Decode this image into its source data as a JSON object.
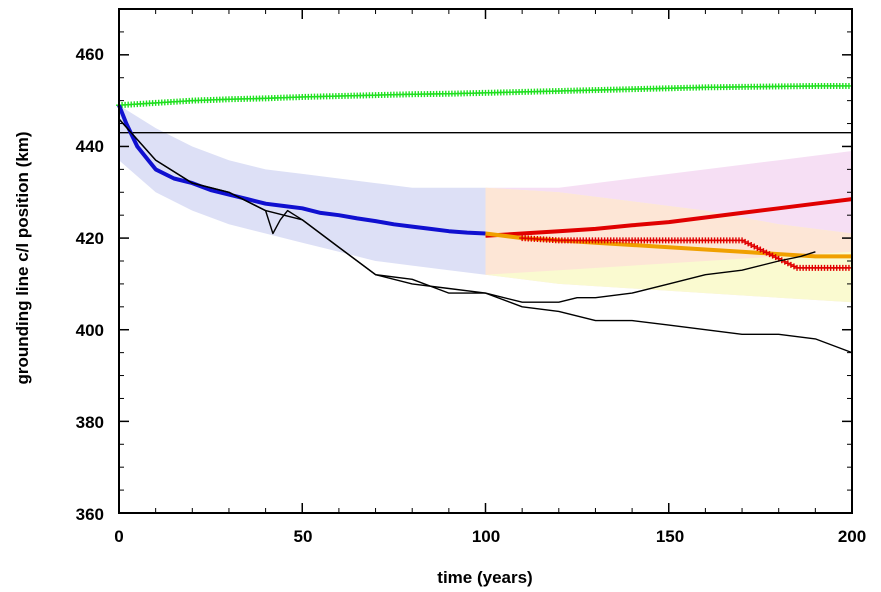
{
  "chart_data": {
    "type": "line",
    "xlabel": "time (years)",
    "ylabel": "grounding line c/l position (km)",
    "xlim": [
      0,
      200
    ],
    "ylim": [
      360,
      470
    ],
    "xticks": [
      0,
      50,
      100,
      150,
      200
    ],
    "yticks": [
      360,
      380,
      400,
      420,
      440,
      460
    ],
    "grid": false,
    "colors": {
      "blue": "#1010d0",
      "red": "#e00000",
      "orange": "#f0a000",
      "green": "#20e020",
      "black": "#000000",
      "blue_band": "#dde0f6",
      "orange_band": "#fde6d6",
      "yellow_band": "#fafad0",
      "pink_band": "#f6dff4"
    },
    "series": [
      {
        "color_key": "black",
        "style": "line",
        "x": [
          0,
          200
        ],
        "y": [
          443,
          443
        ]
      },
      {
        "color_key": "green",
        "style": "plus",
        "x": [
          0,
          10,
          20,
          30,
          40,
          50,
          60,
          70,
          80,
          90,
          100,
          110,
          120,
          130,
          140,
          150,
          160,
          170,
          180,
          190,
          200
        ],
        "y": [
          449,
          449.5,
          450,
          450.3,
          450.5,
          450.8,
          451,
          451.2,
          451.4,
          451.5,
          451.7,
          451.9,
          452.1,
          452.3,
          452.5,
          452.7,
          452.9,
          453,
          453.1,
          453.2,
          453.2
        ]
      },
      {
        "color_key": "blue",
        "style": "line",
        "x": [
          0,
          2,
          5,
          8,
          10,
          15,
          20,
          25,
          30,
          35,
          40,
          45,
          50,
          55,
          60,
          65,
          70,
          75,
          80,
          85,
          90,
          95,
          100
        ],
        "y": [
          449,
          445,
          440,
          437,
          435,
          433,
          432,
          430.5,
          429.5,
          428.5,
          427.5,
          427,
          426.5,
          425.5,
          425,
          424.3,
          423.7,
          423,
          422.5,
          422,
          421.5,
          421.2,
          421
        ]
      },
      {
        "color_key": "red",
        "style": "line",
        "x": [
          100,
          110,
          120,
          130,
          140,
          150,
          160,
          170,
          180,
          190,
          200
        ],
        "y": [
          420.5,
          421,
          421.5,
          422,
          422.8,
          423.5,
          424.5,
          425.5,
          426.5,
          427.5,
          428.5
        ]
      },
      {
        "color_key": "orange",
        "style": "line",
        "x": [
          100,
          110,
          120,
          130,
          140,
          150,
          160,
          170,
          180,
          190,
          200
        ],
        "y": [
          421,
          420,
          419.5,
          419,
          418.5,
          418,
          417.5,
          417,
          416.5,
          416,
          416
        ]
      },
      {
        "color_key": "red",
        "style": "plus",
        "x": [
          110,
          120,
          130,
          140,
          150,
          160,
          170,
          185,
          190,
          200
        ],
        "y": [
          420,
          419.5,
          419.5,
          419.5,
          419.5,
          419.5,
          419.5,
          413.5,
          413.5,
          413.5
        ]
      },
      {
        "color_key": "black",
        "style": "line",
        "x": [
          0,
          10,
          20,
          30,
          40,
          42,
          44,
          46,
          48,
          50,
          60,
          70,
          80,
          90,
          100,
          110,
          120,
          125,
          130,
          140,
          150,
          160,
          170,
          180,
          186,
          190
        ],
        "y": [
          446,
          437,
          432,
          430,
          426,
          421,
          424,
          426,
          425,
          424,
          418,
          412,
          411,
          408,
          408,
          406,
          406,
          407,
          407,
          408,
          410,
          412,
          413,
          415,
          416,
          417
        ]
      },
      {
        "color_key": "black",
        "style": "line",
        "x": [
          0,
          10,
          20,
          30,
          40,
          50,
          60,
          70,
          80,
          90,
          100,
          110,
          120,
          130,
          140,
          150,
          160,
          170,
          180,
          190,
          200
        ],
        "y": [
          446,
          437,
          432,
          430,
          426,
          424,
          418,
          412,
          410,
          409,
          408,
          405,
          404,
          402,
          402,
          401,
          400,
          399,
          399,
          398,
          395
        ]
      }
    ]
  }
}
